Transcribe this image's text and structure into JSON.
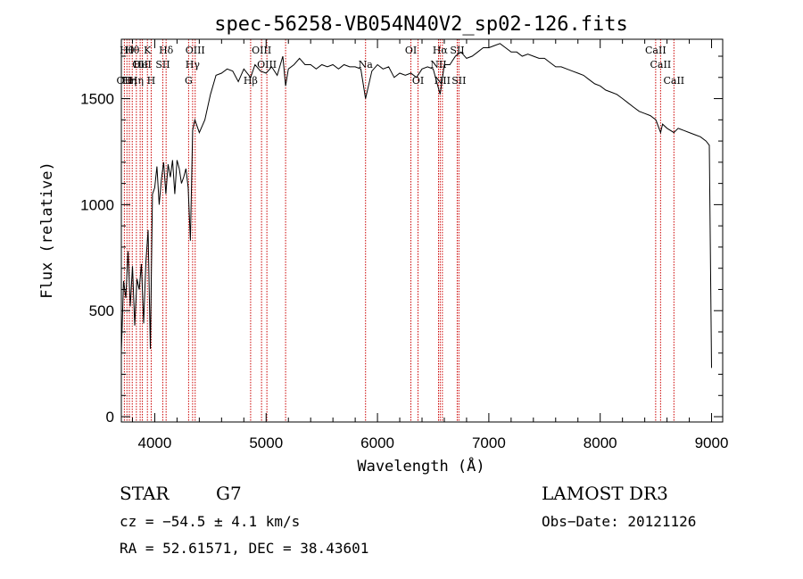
{
  "chart_data": {
    "type": "line",
    "title": "spec-56258-VB054N40V2_sp02-126.fits",
    "xlabel": "Wavelength (Å)",
    "ylabel": "Flux (relative)",
    "xlim": [
      3700,
      9100
    ],
    "ylim": [
      -25,
      1780
    ],
    "x_ticks": [
      4000,
      5000,
      6000,
      7000,
      8000,
      9000
    ],
    "y_ticks": [
      0,
      500,
      1000,
      1500
    ],
    "x_ticklabels": [
      "4000",
      "5000",
      "6000",
      "7000",
      "8000",
      "9000"
    ],
    "y_ticklabels": [
      "0",
      "500",
      "1000",
      "1500"
    ],
    "series": [
      {
        "name": "flux",
        "x": [
          3700,
          3720,
          3740,
          3760,
          3780,
          3800,
          3820,
          3840,
          3860,
          3880,
          3900,
          3920,
          3940,
          3960,
          3980,
          4000,
          4020,
          4040,
          4060,
          4080,
          4100,
          4120,
          4140,
          4160,
          4180,
          4200,
          4220,
          4240,
          4260,
          4280,
          4300,
          4320,
          4340,
          4360,
          4380,
          4400,
          4450,
          4500,
          4550,
          4600,
          4650,
          4700,
          4750,
          4800,
          4861,
          4900,
          4950,
          5000,
          5050,
          5100,
          5150,
          5175,
          5200,
          5250,
          5300,
          5350,
          5400,
          5450,
          5500,
          5550,
          5600,
          5650,
          5700,
          5750,
          5800,
          5850,
          5893,
          5950,
          6000,
          6050,
          6100,
          6150,
          6200,
          6250,
          6300,
          6350,
          6400,
          6450,
          6500,
          6563,
          6600,
          6650,
          6700,
          6750,
          6800,
          6850,
          6900,
          6950,
          7000,
          7050,
          7100,
          7150,
          7200,
          7250,
          7300,
          7350,
          7400,
          7450,
          7500,
          7550,
          7600,
          7650,
          7700,
          7750,
          7800,
          7850,
          7900,
          7950,
          8000,
          8050,
          8100,
          8150,
          8200,
          8250,
          8300,
          8350,
          8400,
          8450,
          8500,
          8542,
          8560,
          8600,
          8662,
          8700,
          8750,
          8800,
          8850,
          8900,
          8950,
          8980,
          9000
        ],
        "values": [
          300,
          640,
          560,
          780,
          520,
          710,
          430,
          650,
          600,
          720,
          440,
          730,
          880,
          320,
          1050,
          1080,
          1180,
          1000,
          1120,
          1200,
          1050,
          1190,
          1130,
          1210,
          1050,
          1210,
          1170,
          1100,
          1130,
          1170,
          1080,
          830,
          1350,
          1400,
          1370,
          1340,
          1400,
          1520,
          1610,
          1620,
          1640,
          1630,
          1580,
          1640,
          1600,
          1660,
          1630,
          1620,
          1650,
          1610,
          1700,
          1560,
          1640,
          1660,
          1690,
          1660,
          1660,
          1640,
          1660,
          1650,
          1660,
          1640,
          1660,
          1650,
          1650,
          1640,
          1500,
          1630,
          1660,
          1640,
          1650,
          1600,
          1620,
          1610,
          1620,
          1600,
          1640,
          1650,
          1640,
          1520,
          1660,
          1660,
          1700,
          1720,
          1690,
          1700,
          1720,
          1740,
          1740,
          1750,
          1760,
          1740,
          1720,
          1720,
          1700,
          1710,
          1700,
          1690,
          1690,
          1670,
          1650,
          1650,
          1640,
          1630,
          1620,
          1610,
          1590,
          1570,
          1560,
          1540,
          1530,
          1520,
          1500,
          1480,
          1460,
          1440,
          1430,
          1420,
          1400,
          1340,
          1380,
          1360,
          1340,
          1360,
          1350,
          1340,
          1330,
          1320,
          1300,
          1280,
          230
        ]
      }
    ],
    "line_markers": [
      {
        "x": 3727,
        "row": 2,
        "label": "OII"
      },
      {
        "x": 3750,
        "row": 0,
        "label": "Hθ"
      },
      {
        "x": 3772,
        "row": 2,
        "label": "Hη"
      },
      {
        "x": 3798,
        "row": 0,
        "label": "Hθ"
      },
      {
        "x": 3835,
        "row": 2,
        "label": "Hη"
      },
      {
        "x": 3869,
        "row": 1,
        "label": "OII"
      },
      {
        "x": 3889,
        "row": 1,
        "label": "HeI"
      },
      {
        "x": 3934,
        "row": 0,
        "label": "K"
      },
      {
        "x": 3968,
        "row": 2,
        "label": "H"
      },
      {
        "x": 4072,
        "row": 1,
        "label": "SII"
      },
      {
        "x": 4102,
        "row": 0,
        "label": "Hδ"
      },
      {
        "x": 4304,
        "row": 2,
        "label": "G"
      },
      {
        "x": 4340,
        "row": 1,
        "label": "Hγ"
      },
      {
        "x": 4363,
        "row": 0,
        "label": "OIII"
      },
      {
        "x": 4861,
        "row": 2,
        "label": "Hβ"
      },
      {
        "x": 4959,
        "row": 0,
        "label": "OIII"
      },
      {
        "x": 5007,
        "row": 1,
        "label": "OIII"
      },
      {
        "x": 5175,
        "row": -1,
        "label": ""
      },
      {
        "x": 5893,
        "row": 1,
        "label": "Na"
      },
      {
        "x": 6300,
        "row": 0,
        "label": "OI"
      },
      {
        "x": 6364,
        "row": 2,
        "label": "OI"
      },
      {
        "x": 6548,
        "row": 1,
        "label": "NII"
      },
      {
        "x": 6563,
        "row": 0,
        "label": "Hα"
      },
      {
        "x": 6583,
        "row": 2,
        "label": "NII"
      },
      {
        "x": 6716,
        "row": 0,
        "label": "SII"
      },
      {
        "x": 6731,
        "row": 2,
        "label": "SII"
      },
      {
        "x": 8498,
        "row": 0,
        "label": "CaII"
      },
      {
        "x": 8542,
        "row": 1,
        "label": "CaII"
      },
      {
        "x": 8662,
        "row": 2,
        "label": "CaII"
      }
    ]
  },
  "footer": {
    "object_class": "STAR",
    "subclass": "G7",
    "survey": "LAMOST DR3",
    "cz": "cz = −54.5 ± 4.1 km/s",
    "obs_date": "Obs−Date: 20121126",
    "coords": "RA =  52.61571, DEC =  38.43601"
  },
  "colors": {
    "line": "#000000",
    "marker": "#cc0000",
    "background": "#ffffff"
  }
}
